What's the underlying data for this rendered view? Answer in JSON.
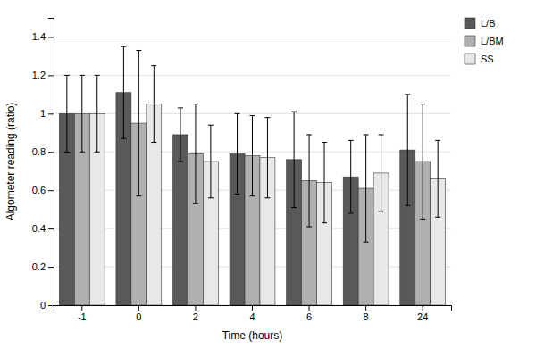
{
  "chart_data": {
    "type": "bar",
    "categories": [
      "-1",
      "0",
      "2",
      "4",
      "6",
      "8",
      "24"
    ],
    "series": [
      {
        "name": "L/B",
        "color": "#595959",
        "values": [
          1.0,
          1.11,
          0.89,
          0.79,
          0.76,
          0.67,
          0.81
        ],
        "errors": [
          0.2,
          0.24,
          0.14,
          0.21,
          0.25,
          0.19,
          0.29
        ]
      },
      {
        "name": "L/BM",
        "color": "#b0b0b0",
        "values": [
          1.0,
          0.95,
          0.79,
          0.78,
          0.65,
          0.61,
          0.75
        ],
        "errors": [
          0.2,
          0.38,
          0.26,
          0.21,
          0.24,
          0.28,
          0.3
        ]
      },
      {
        "name": "SS",
        "color": "#e8e8e8",
        "values": [
          1.0,
          1.05,
          0.75,
          0.77,
          0.64,
          0.69,
          0.66
        ],
        "errors": [
          0.2,
          0.2,
          0.19,
          0.21,
          0.21,
          0.2,
          0.2
        ]
      }
    ],
    "xlabel": "Time (hours)",
    "ylabel": "Algometer reading (ratio)",
    "ylim": [
      0,
      1.5
    ],
    "yticks": [
      0,
      0.2,
      0.4,
      0.6,
      0.8,
      1,
      1.2,
      1.4
    ],
    "grid": true,
    "legend": "right"
  }
}
